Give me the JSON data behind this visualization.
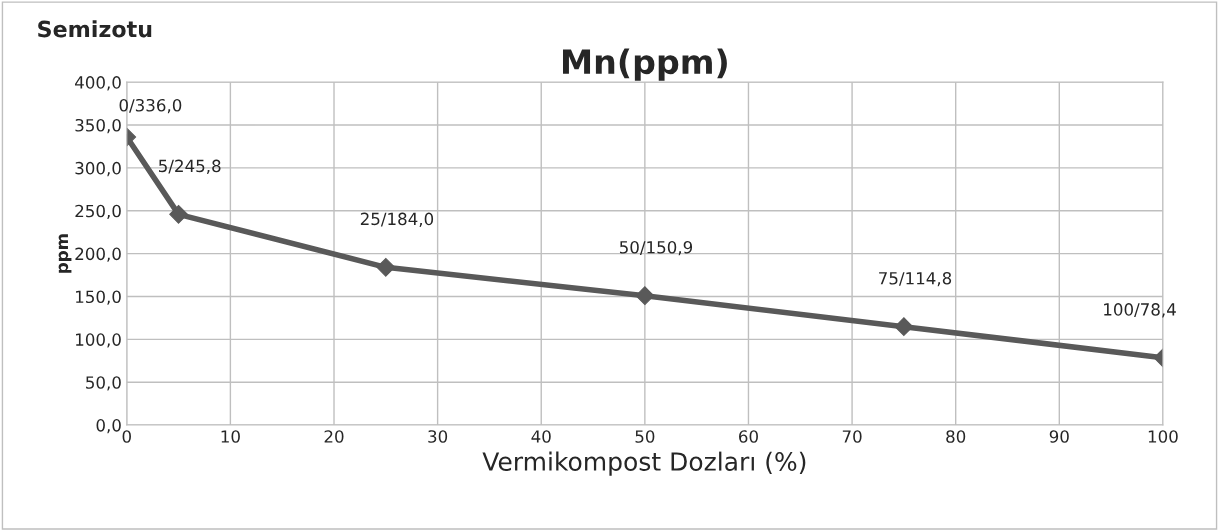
{
  "chart_data": {
    "type": "line",
    "title": "Mn(ppm)",
    "xlabel": "Vermikompost Dozları (%)",
    "ylabel": "ppm",
    "annotations": [
      "Semizotu"
    ],
    "x": [
      0,
      5,
      25,
      50,
      75,
      100
    ],
    "series": [
      {
        "color": "#595959",
        "values": [
          336.0,
          245.8,
          184.0,
          150.9,
          114.8,
          78.4
        ],
        "value_labels": [
          "0/336,0",
          "5/245,8",
          "25/184,0",
          "50/150,9",
          "75/114,8",
          "100/78,4"
        ]
      }
    ],
    "xlim": [
      0,
      100
    ],
    "xticks": [
      0,
      10,
      20,
      30,
      40,
      50,
      60,
      70,
      80,
      90,
      100
    ],
    "ylim": [
      0,
      400
    ],
    "yticks": [
      {
        "value": 0,
        "label": "0,0"
      },
      {
        "value": 50,
        "label": "50,0"
      },
      {
        "value": 100,
        "label": "100,0"
      },
      {
        "value": 150,
        "label": "150,0"
      },
      {
        "value": 200,
        "label": "200,0"
      },
      {
        "value": 250,
        "label": "250,0"
      },
      {
        "value": 300,
        "label": "300,0"
      },
      {
        "value": 350,
        "label": "350,0"
      },
      {
        "value": 400,
        "label": "400,0"
      }
    ],
    "grid": true,
    "marker": "diamond",
    "line_style": "solid",
    "legend": false
  }
}
